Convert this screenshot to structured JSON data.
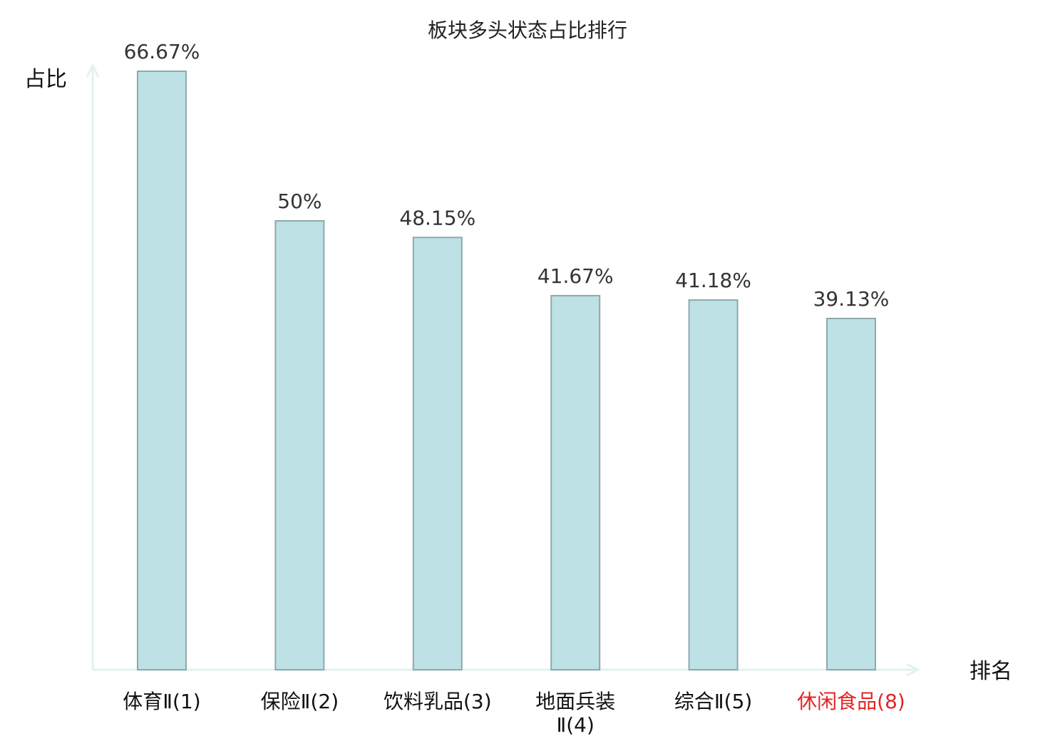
{
  "chart_data": {
    "type": "bar",
    "title": "板块多头状态占比排行",
    "xlabel": "排名",
    "ylabel": "占比",
    "categories": [
      [
        "体育Ⅱ(1)"
      ],
      [
        "保险Ⅱ(2)"
      ],
      [
        "饮料乳品(3)"
      ],
      [
        "地面兵装",
        "Ⅱ(4)"
      ],
      [
        "综合Ⅱ(5)"
      ],
      [
        "休闲食品(8)"
      ]
    ],
    "values": [
      66.67,
      50,
      48.15,
      41.67,
      41.18,
      39.13
    ],
    "value_labels": [
      "66.67%",
      "50%",
      "48.15%",
      "41.67%",
      "41.18%",
      "39.13%"
    ],
    "highlight_index": 5,
    "ylim": [
      0,
      70
    ],
    "grid": false,
    "colors": {
      "bar_fill": "#bde1e4",
      "bar_stroke": "#8ea9ac",
      "axis": "#e2f2ef",
      "highlight_label": "#e32424",
      "normal_label": "#111111"
    }
  }
}
